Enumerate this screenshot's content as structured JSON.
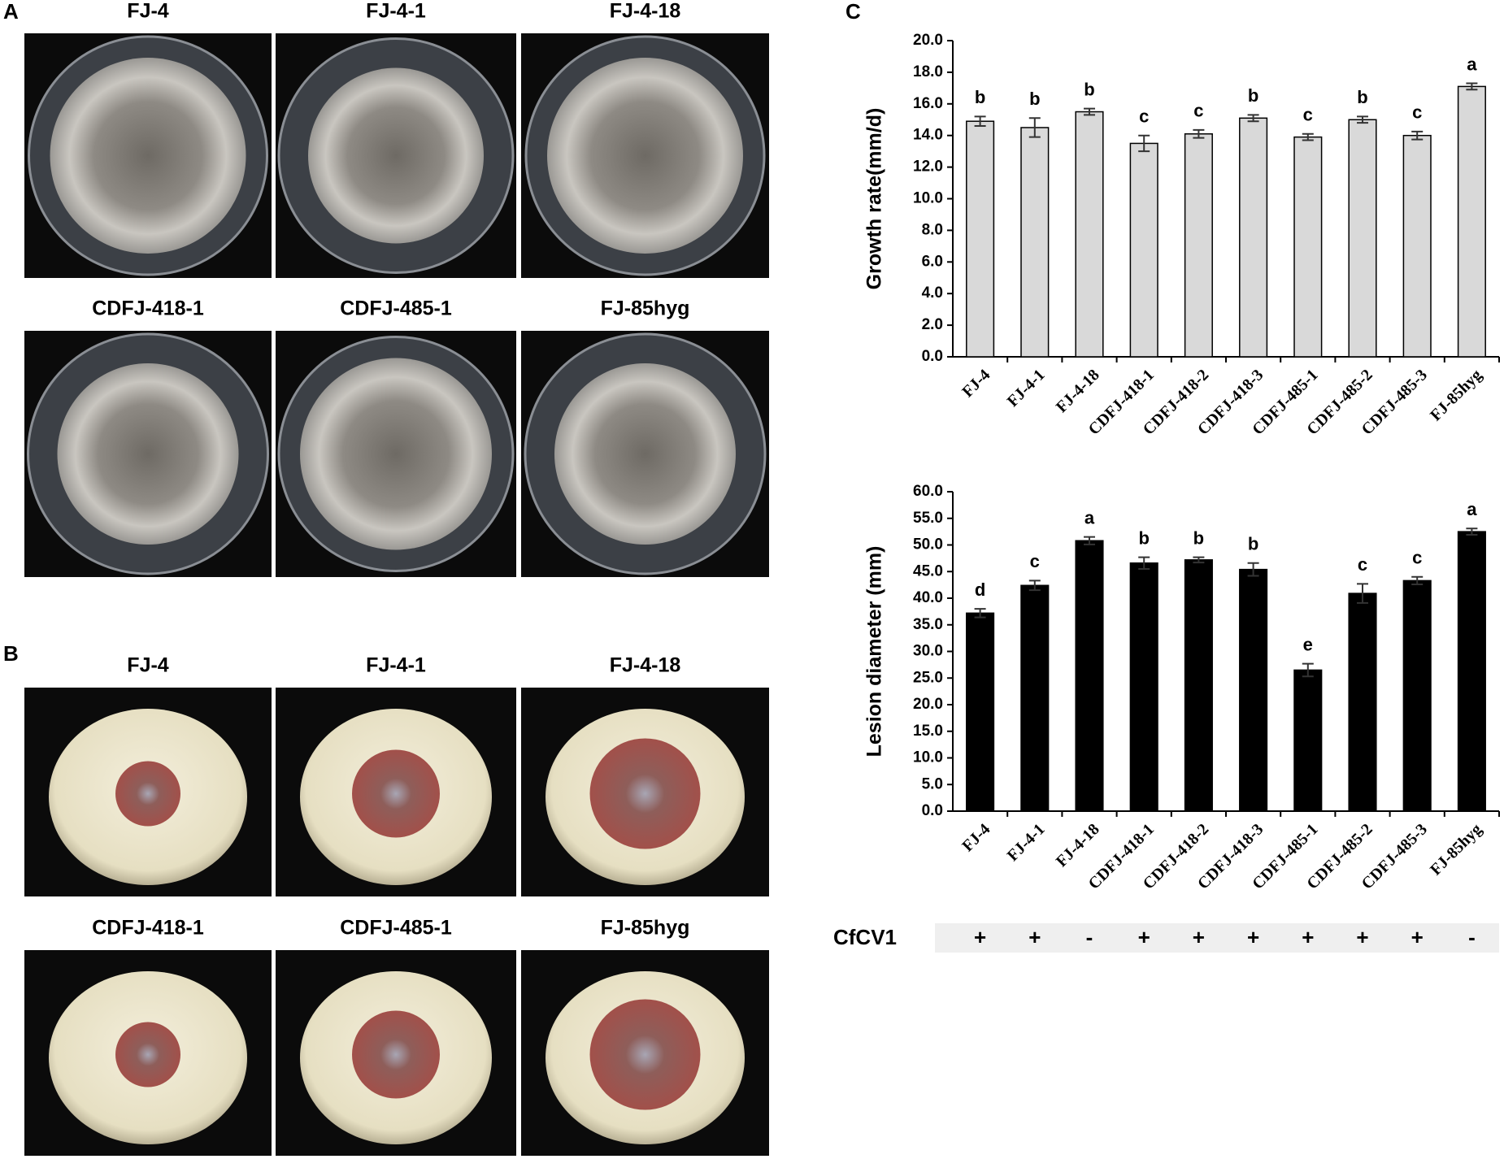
{
  "panel_a": {
    "label": "A",
    "photos": [
      "FJ-4",
      "FJ-4-1",
      "FJ-4-18",
      "CDFJ-418-1",
      "CDFJ-485-1",
      "FJ-85hyg"
    ]
  },
  "panel_b": {
    "label": "B",
    "photos": [
      "FJ-4",
      "FJ-4-1",
      "FJ-4-18",
      "CDFJ-418-1",
      "CDFJ-485-1",
      "FJ-85hyg"
    ]
  },
  "panel_c": {
    "label": "C"
  },
  "chart_data": [
    {
      "type": "bar",
      "y_label": "Growth rate(mm/d)",
      "color": "#d9d9d9",
      "categories": [
        "FJ-4",
        "FJ-4-1",
        "FJ-4-18",
        "CDFJ-418-1",
        "CDFJ-418-2",
        "CDFJ-418-3",
        "CDFJ-485-1",
        "CDFJ-485-2",
        "CDFJ-485-3",
        "FJ-85hyg"
      ],
      "values": [
        14.9,
        14.5,
        15.5,
        13.5,
        14.1,
        15.1,
        13.9,
        15.0,
        14.0,
        17.1
      ],
      "errors": [
        0.3,
        0.6,
        0.2,
        0.5,
        0.25,
        0.2,
        0.2,
        0.2,
        0.25,
        0.2
      ],
      "letters": [
        "b",
        "b",
        "b",
        "c",
        "c",
        "b",
        "c",
        "b",
        "c",
        "a"
      ],
      "ylim": [
        0,
        20
      ],
      "yticks": [
        {
          "value": 0,
          "label": "0.0"
        },
        {
          "value": 2,
          "label": "2.0"
        },
        {
          "value": 4,
          "label": "4.0"
        },
        {
          "value": 6,
          "label": "6.0"
        },
        {
          "value": 8,
          "label": "8.0"
        },
        {
          "value": 10,
          "label": "10.0"
        },
        {
          "value": 12,
          "label": "12.0"
        },
        {
          "value": 14,
          "label": "14.0"
        },
        {
          "value": 16,
          "label": "16.0"
        },
        {
          "value": 18,
          "label": "18.0"
        },
        {
          "value": 20,
          "label": "20.0"
        }
      ]
    },
    {
      "type": "bar",
      "y_label": "Lesion diameter (mm)",
      "color": "#000000",
      "categories": [
        "FJ-4",
        "FJ-4-1",
        "FJ-4-18",
        "CDFJ-418-1",
        "CDFJ-418-2",
        "CDFJ-418-3",
        "CDFJ-485-1",
        "CDFJ-485-2",
        "CDFJ-485-3",
        "FJ-85hyg"
      ],
      "values": [
        37.2,
        42.4,
        50.8,
        46.6,
        47.2,
        45.4,
        26.5,
        40.9,
        43.3,
        52.5
      ],
      "errors": [
        0.8,
        0.9,
        0.7,
        1.1,
        0.5,
        1.2,
        1.2,
        1.8,
        0.7,
        0.6
      ],
      "letters": [
        "d",
        "c",
        "a",
        "b",
        "b",
        "b",
        "e",
        "c",
        "c",
        "a"
      ],
      "ylim": [
        0,
        60
      ],
      "yticks": [
        {
          "value": 0,
          "label": "0.0"
        },
        {
          "value": 5,
          "label": "5.0"
        },
        {
          "value": 10,
          "label": "10.0"
        },
        {
          "value": 15,
          "label": "15.0"
        },
        {
          "value": 20,
          "label": "20.0"
        },
        {
          "value": 25,
          "label": "25.0"
        },
        {
          "value": 30,
          "label": "30.0"
        },
        {
          "value": 35,
          "label": "35.0"
        },
        {
          "value": 40,
          "label": "40.0"
        },
        {
          "value": 45,
          "label": "45.0"
        },
        {
          "value": 50,
          "label": "50.0"
        },
        {
          "value": 55,
          "label": "55.0"
        },
        {
          "value": 60,
          "label": "60.0"
        }
      ]
    }
  ],
  "cfcv1": {
    "label": "CfCV1",
    "marks": [
      "+",
      "+",
      "-",
      "+",
      "+",
      "+",
      "+",
      "+",
      "+",
      "-"
    ]
  }
}
